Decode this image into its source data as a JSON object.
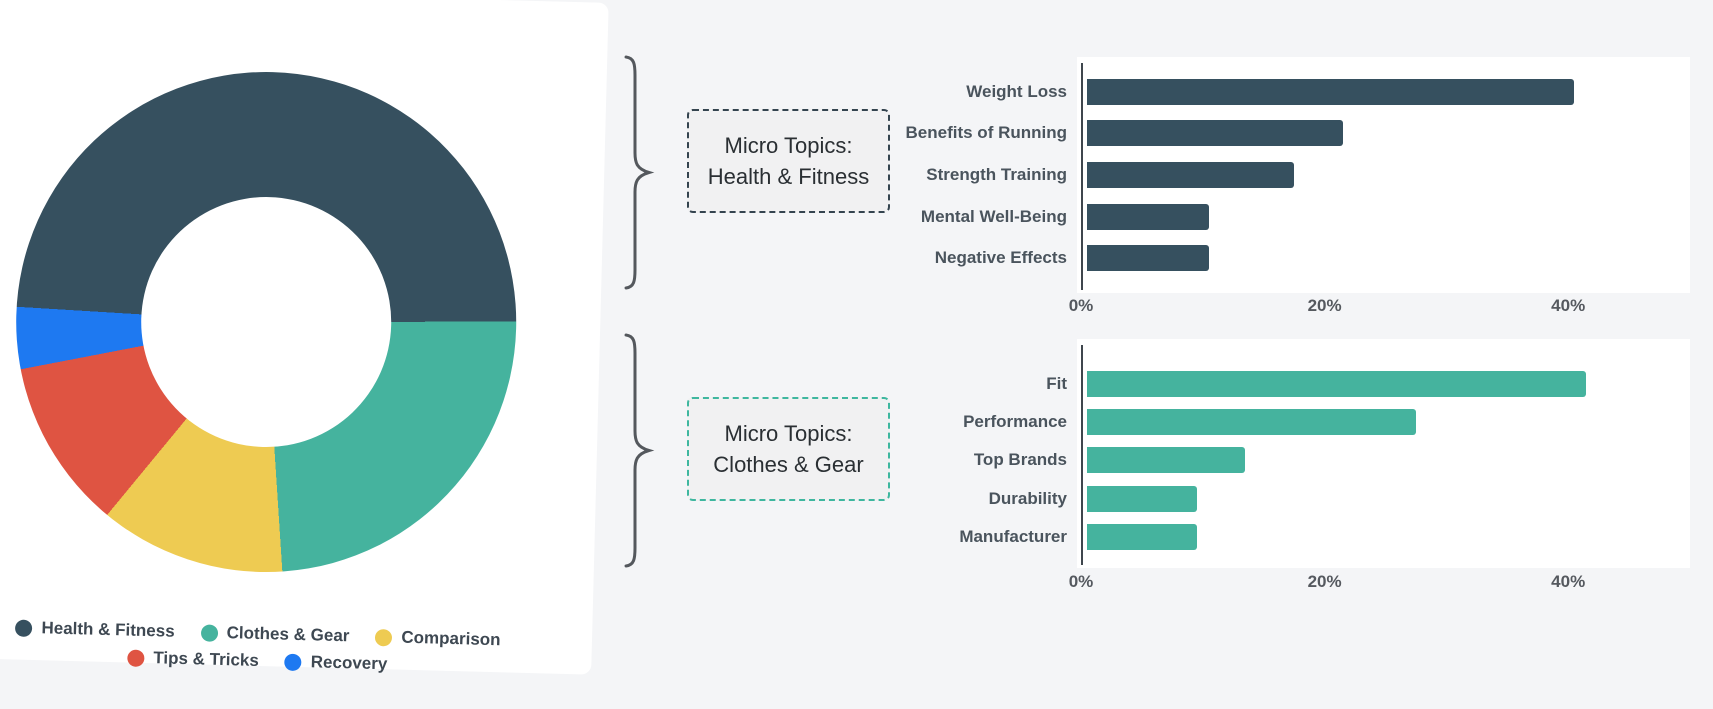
{
  "page": {
    "background": "#F4F5F7"
  },
  "chart_data": [
    {
      "type": "pie",
      "subtype": "donut",
      "categories": [
        "Health & Fitness",
        "Clothes & Gear",
        "Comparison",
        "Tips & Tricks",
        "Recovery"
      ],
      "values": [
        49,
        24,
        12,
        11,
        4
      ],
      "unit": "%",
      "colors": [
        "#36505F",
        "#45B39E",
        "#EECB52",
        "#DF5442",
        "#1E79F1"
      ],
      "start_angle_deg": -88,
      "hole_ratio": 0.5,
      "legend_position": "bottom"
    },
    {
      "type": "bar",
      "orientation": "horizontal",
      "title": "Micro Topics: Health & Fitness",
      "categories": [
        "Weight Loss",
        "Benefits of Running",
        "Strength Training",
        "Mental Well-Being",
        "Negative Effects"
      ],
      "values": [
        40,
        21,
        17,
        10,
        10
      ],
      "unit": "%",
      "bar_color": "#36505F",
      "xlim": [
        0,
        50
      ],
      "xticks": [
        {
          "label": "0%",
          "value": 0
        },
        {
          "label": "20%",
          "value": 20
        },
        {
          "label": "40%",
          "value": 40
        }
      ],
      "grid": false,
      "legend_position": "none"
    },
    {
      "type": "bar",
      "orientation": "horizontal",
      "title": "Micro Topics: Clothes & Gear",
      "categories": [
        "Fit",
        "Performance",
        "Top Brands",
        "Durability",
        "Manufacturer"
      ],
      "values": [
        41,
        27,
        13,
        9,
        9
      ],
      "unit": "%",
      "bar_color": "#45B39E",
      "xlim": [
        0,
        50
      ],
      "xticks": [
        {
          "label": "0%",
          "value": 0
        },
        {
          "label": "20%",
          "value": 20
        },
        {
          "label": "40%",
          "value": 40
        }
      ],
      "grid": false,
      "legend_position": "none"
    }
  ],
  "legend": {
    "items": [
      {
        "label": "Health & Fitness",
        "color": "#36505F"
      },
      {
        "label": "Clothes & Gear",
        "color": "#45B39E"
      },
      {
        "label": "Comparison",
        "color": "#EECB52"
      },
      {
        "label": "Tips & Tricks",
        "color": "#DF5442"
      },
      {
        "label": "Recovery",
        "color": "#1E79F1"
      }
    ],
    "row_split": [
      3,
      2
    ]
  },
  "callouts": {
    "health_fitness": {
      "line1": "Micro Topics:",
      "line2": "Health & Fitness",
      "border_color": "#34444F"
    },
    "clothes_gear": {
      "line1": "Micro Topics:",
      "line2": "Clothes & Gear",
      "border_color": "#3EB79F"
    }
  }
}
